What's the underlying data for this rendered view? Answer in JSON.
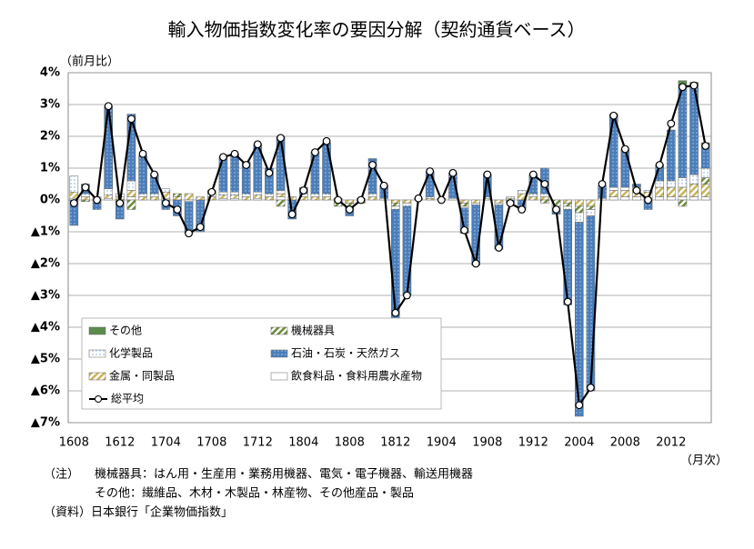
{
  "chart_data": {
    "type": "stacked_bar_line",
    "title": "輸入物価指数変化率の要因分解（契約通貨ベース）",
    "y_label": "（前月比）",
    "x_label": "（月次）",
    "categories": [
      "1608",
      null,
      null,
      null,
      "1612",
      null,
      null,
      null,
      "1704",
      null,
      null,
      null,
      "1708",
      null,
      null,
      null,
      "1712",
      null,
      null,
      null,
      "1804",
      null,
      null,
      null,
      "1808",
      null,
      null,
      null,
      "1812",
      null,
      null,
      null,
      "1904",
      null,
      null,
      null,
      "1908",
      null,
      null,
      null,
      "1912",
      null,
      null,
      null,
      "2004",
      null,
      null,
      null,
      "2008",
      null,
      null,
      null,
      "2012",
      null,
      null,
      null
    ],
    "series": [
      {
        "name": "その他",
        "color": "#5b8c4e",
        "fill_style": "solid",
        "values": [
          0,
          0,
          0,
          0,
          0,
          0,
          0,
          0,
          0,
          0,
          0,
          0,
          0,
          0,
          0,
          0,
          0,
          0,
          0,
          0,
          0,
          0,
          0,
          0,
          0,
          0,
          0,
          0,
          0,
          0,
          0,
          0,
          0,
          0,
          0,
          0,
          0,
          0,
          0,
          0,
          0,
          0,
          0,
          0,
          0,
          0,
          0,
          0,
          0,
          0,
          0,
          0,
          0,
          0.15,
          0.1,
          0.1
        ]
      },
      {
        "name": "機械器具",
        "color": "#6b8c3a",
        "fill_style": "hatch",
        "values": [
          0,
          -0.05,
          -0.1,
          0,
          -0.1,
          -0.3,
          0,
          0,
          0,
          0.1,
          0,
          0,
          0,
          0,
          0,
          0,
          0,
          0,
          -0.2,
          0,
          0,
          0,
          0,
          -0.1,
          -0.1,
          -0.1,
          0,
          0,
          -0.1,
          0,
          0,
          0,
          0,
          0,
          -0.1,
          0,
          0,
          0,
          0,
          0,
          0,
          -0.1,
          -0.2,
          -0.1,
          -0.2,
          -0.1,
          0,
          0,
          0,
          0,
          0,
          0,
          0,
          -0.2,
          0,
          0.2
        ]
      },
      {
        "name": "化学製品",
        "color": "#6fa8dc",
        "fill_style": "dots-light",
        "values": [
          0.5,
          0.1,
          0.1,
          0.2,
          0.1,
          0.3,
          0.1,
          0.1,
          0.1,
          0,
          -0.05,
          0,
          0.1,
          0.1,
          0.1,
          0.1,
          0.1,
          0.1,
          0.1,
          0,
          0.1,
          0.1,
          0.1,
          0.05,
          0,
          0.05,
          0.1,
          0.05,
          -0.1,
          -0.1,
          0.05,
          0.05,
          0,
          0.05,
          -0.05,
          -0.05,
          0.05,
          -0.05,
          0.05,
          0.1,
          0.1,
          0.1,
          -0.05,
          -0.1,
          -0.3,
          -0.2,
          0.05,
          0.1,
          0.1,
          0.1,
          0.05,
          0.2,
          0.2,
          0.3,
          0.3,
          0.3
        ]
      },
      {
        "name": "石油・石炭・天然ガス",
        "color": "#4a7ebb",
        "fill_style": "dots-dark",
        "values": [
          -0.8,
          0.3,
          -0.2,
          2.6,
          -0.5,
          2.1,
          1.2,
          0.6,
          -0.3,
          -0.5,
          -1.0,
          -1.0,
          0.1,
          1.1,
          1.2,
          1.0,
          1.5,
          0.8,
          1.7,
          -0.6,
          0.2,
          1.3,
          1.6,
          0.0,
          -0.3,
          0.0,
          1.1,
          0.4,
          -3.4,
          -2.8,
          0.0,
          0.8,
          0.0,
          0.8,
          -0.8,
          -1.9,
          0.7,
          -1.4,
          -0.1,
          -0.3,
          0.6,
          0.8,
          -0.2,
          -3.0,
          -6.1,
          -5.5,
          0.4,
          2.3,
          1.2,
          0.1,
          -0.3,
          0.5,
          1.6,
          2.9,
          2.8,
          0.7
        ]
      },
      {
        "name": "金属・同製品",
        "color": "#c9b458",
        "fill_style": "hatch",
        "values": [
          0.2,
          0.1,
          0,
          0.1,
          0.1,
          0.2,
          0.1,
          0.1,
          0.2,
          0.1,
          0.2,
          0.1,
          0.1,
          0.1,
          0.1,
          0.1,
          0.1,
          0.1,
          0.1,
          0.1,
          0.1,
          0.1,
          0.1,
          -0.1,
          -0.1,
          0,
          0.1,
          0,
          -0.1,
          -0.1,
          0,
          0.05,
          0.05,
          0,
          -0.1,
          -0.1,
          0.05,
          -0.1,
          0.05,
          0.2,
          0.1,
          0.1,
          0,
          -0.1,
          -0.2,
          -0.2,
          0,
          0.2,
          0.2,
          0.2,
          0.2,
          0.3,
          0.3,
          0.3,
          0.4,
          0.4
        ]
      },
      {
        "name": "飲食料品・食料用農水産物",
        "color": "#ffffff",
        "fill_style": "solid",
        "values": [
          0.05,
          0,
          0,
          0.05,
          0,
          0.1,
          0,
          0,
          0.05,
          0,
          0,
          0,
          0,
          0.05,
          0.05,
          0,
          0.05,
          0,
          0.1,
          0,
          0,
          0,
          0,
          0,
          0,
          0,
          0,
          0,
          0,
          0,
          0,
          0,
          0,
          0,
          0,
          0,
          0,
          0,
          0,
          0,
          0,
          0,
          0,
          0,
          0,
          0,
          0,
          0.1,
          0.1,
          0.1,
          0.05,
          0.1,
          0.1,
          0.1,
          0.1,
          0.1
        ]
      }
    ],
    "line": {
      "name": "総平均",
      "color": "#000000",
      "values": [
        -0.1,
        0.4,
        0.0,
        2.95,
        -0.1,
        2.55,
        1.45,
        0.8,
        -0.1,
        -0.3,
        -1.05,
        -0.85,
        0.25,
        1.35,
        1.45,
        1.1,
        1.75,
        0.85,
        1.95,
        -0.45,
        0.3,
        1.5,
        1.85,
        0.0,
        -0.3,
        0.0,
        1.1,
        0.45,
        -3.55,
        -3.0,
        0.05,
        0.9,
        0.0,
        0.85,
        -0.95,
        -2.0,
        0.8,
        -1.5,
        -0.1,
        -0.3,
        0.8,
        0.5,
        -0.3,
        -3.2,
        -6.45,
        -5.9,
        0.5,
        2.65,
        1.6,
        0.3,
        0.0,
        1.1,
        2.4,
        3.55,
        3.6,
        1.7
      ]
    },
    "ylim": [
      -7,
      4
    ],
    "yticks": [
      {
        "value": 4,
        "label": "4%"
      },
      {
        "value": 3,
        "label": "3%"
      },
      {
        "value": 2,
        "label": "2%"
      },
      {
        "value": 1,
        "label": "1%"
      },
      {
        "value": 0,
        "label": "0%"
      },
      {
        "value": -1,
        "label": "▲1%"
      },
      {
        "value": -2,
        "label": "▲2%"
      },
      {
        "value": -3,
        "label": "▲3%"
      },
      {
        "value": -4,
        "label": "▲4%"
      },
      {
        "value": -5,
        "label": "▲5%"
      },
      {
        "value": -6,
        "label": "▲6%"
      },
      {
        "value": -7,
        "label": "▲7%"
      }
    ],
    "negative_tick_color": "#e00000",
    "grid": true,
    "legend": "lower-left",
    "notes": [
      "（注）",
      "機械器具：はん用・生産用・業務用機器、電気・電子機器、輸送用機器",
      "その他：繊維品、木材・木製品・林産物、その他産品・製品",
      "（資料）日本銀行「企業物価指数」"
    ]
  }
}
